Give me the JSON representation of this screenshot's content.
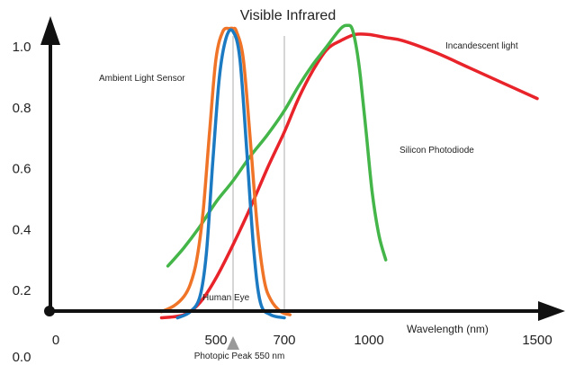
{
  "chart_data": {
    "type": "line",
    "title": "Visible Infrared",
    "xlabel": "Wavelength (nm)",
    "ylabel": "",
    "x_ticks": [
      {
        "value": 0,
        "label": "0"
      },
      {
        "value": 500,
        "label": "500"
      },
      {
        "value": 700,
        "label": "700"
      },
      {
        "value": 1000,
        "label": "1000"
      },
      {
        "value": 1500,
        "label": "1500"
      }
    ],
    "y_ticks": [
      {
        "value": 0.0,
        "label": "0.0"
      },
      {
        "value": 0.2,
        "label": "0.2"
      },
      {
        "value": 0.4,
        "label": "0.4"
      },
      {
        "value": 0.6,
        "label": "0.6"
      },
      {
        "value": 0.8,
        "label": "0.8"
      },
      {
        "value": 1.0,
        "label": "1.0"
      }
    ],
    "reference_lines": [
      550,
      700
    ],
    "annotation": "Photopic Peak 550 nm",
    "annotation_x": 550,
    "colors": {
      "incandescent": "#e8232a",
      "silicon": "#44b649",
      "ambient": "#f07428",
      "human_eye": "#1b7ac2",
      "reference": "#bbbbbb",
      "marker": "#999999"
    },
    "series": [
      {
        "name": "Incandescent light",
        "key": "incandescent",
        "x": [
          330,
          400,
          450,
          500,
          550,
          600,
          650,
          700,
          750,
          800,
          850,
          900,
          950,
          1000,
          1050,
          1100,
          1200,
          1300,
          1400,
          1500
        ],
        "y": [
          0.11,
          0.12,
          0.16,
          0.24,
          0.35,
          0.47,
          0.6,
          0.72,
          0.83,
          0.92,
          0.99,
          1.02,
          1.04,
          1.04,
          1.03,
          1.02,
          0.98,
          0.93,
          0.88,
          0.83
        ]
      },
      {
        "name": "Silicon Photodiode",
        "key": "silicon",
        "x": [
          350,
          400,
          450,
          500,
          550,
          600,
          650,
          700,
          750,
          800,
          850,
          900,
          925,
          940,
          955,
          970,
          990,
          1010,
          1030,
          1050
        ],
        "y": [
          0.28,
          0.34,
          0.41,
          0.49,
          0.56,
          0.64,
          0.71,
          0.79,
          0.87,
          0.94,
          1.0,
          1.06,
          1.07,
          1.06,
          1.0,
          0.9,
          0.72,
          0.52,
          0.38,
          0.3
        ]
      },
      {
        "name": "Ambient Light Sensor",
        "key": "ambient",
        "x": [
          330,
          370,
          400,
          420,
          440,
          460,
          480,
          500,
          520,
          540,
          550,
          560,
          580,
          600,
          620,
          640,
          660,
          690,
          720
        ],
        "y": [
          0.13,
          0.15,
          0.18,
          0.22,
          0.3,
          0.46,
          0.72,
          0.96,
          1.05,
          1.06,
          1.06,
          1.05,
          0.96,
          0.7,
          0.42,
          0.24,
          0.17,
          0.13,
          0.12
        ]
      },
      {
        "name": "Human Eye",
        "key": "human_eye",
        "x": [
          380,
          420,
          450,
          470,
          490,
          510,
          530,
          550,
          570,
          590,
          610,
          630,
          660,
          700
        ],
        "y": [
          0.11,
          0.13,
          0.18,
          0.32,
          0.62,
          0.9,
          1.03,
          1.05,
          0.96,
          0.66,
          0.34,
          0.16,
          0.12,
          0.11
        ]
      }
    ],
    "labels": {
      "incandescent": "Incandescent light",
      "silicon": "Silicon Photodiode",
      "ambient": "Ambient Light Sensor",
      "human_eye": "Human Eye"
    }
  }
}
